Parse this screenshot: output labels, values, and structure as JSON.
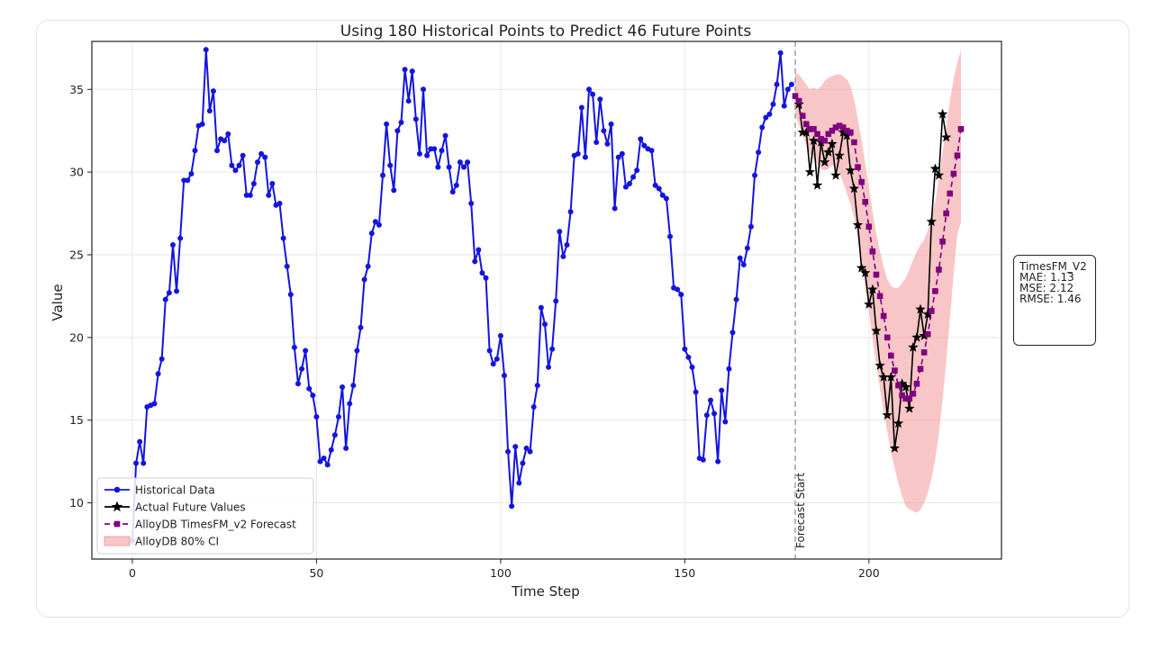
{
  "chart_data": {
    "type": "line",
    "title": "Using 180 Historical Points to Predict 46 Future Points",
    "xlabel": "Time Step",
    "ylabel": "Value",
    "xlim": [
      -11,
      236
    ],
    "ylim": [
      6.6,
      37.9
    ],
    "x_ticks": [
      0,
      50,
      100,
      150,
      200
    ],
    "y_ticks": [
      10,
      15,
      20,
      25,
      30,
      35
    ],
    "grid": true,
    "legend_position": "lower-left",
    "forecast_start": 180,
    "forecast_start_label": "Forecast Start",
    "series": [
      {
        "name": "Historical Data",
        "color": "#1414e0",
        "marker": "circle",
        "x_start": 0,
        "values": [
          7.7,
          12.4,
          13.7,
          12.4,
          15.8,
          15.9,
          16.0,
          17.8,
          18.7,
          22.3,
          22.7,
          25.6,
          22.8,
          26.0,
          29.5,
          29.5,
          29.9,
          31.3,
          32.8,
          32.9,
          37.4,
          33.7,
          34.9,
          31.3,
          32.0,
          31.9,
          32.3,
          30.4,
          30.1,
          30.4,
          31.0,
          28.6,
          28.6,
          29.3,
          30.6,
          31.1,
          30.9,
          28.6,
          29.3,
          28.0,
          28.1,
          26.0,
          24.3,
          22.6,
          19.4,
          17.2,
          18.1,
          19.2,
          16.9,
          16.5,
          15.2,
          12.5,
          12.7,
          12.3,
          13.2,
          14.1,
          15.2,
          17.0,
          13.3,
          16.0,
          17.1,
          19.2,
          20.6,
          23.5,
          24.3,
          26.3,
          27.0,
          26.8,
          29.8,
          32.9,
          30.4,
          28.9,
          32.5,
          33.0,
          36.2,
          34.3,
          36.1,
          33.2,
          31.1,
          35.0,
          31.0,
          31.4,
          31.4,
          30.3,
          31.3,
          32.2,
          30.3,
          28.8,
          29.2,
          30.6,
          30.3,
          30.6,
          28.1,
          24.6,
          25.3,
          23.9,
          23.6,
          19.2,
          18.4,
          18.7,
          20.1,
          17.7,
          13.1,
          9.8,
          13.4,
          11.2,
          12.4,
          13.3,
          13.1,
          15.8,
          17.1,
          21.8,
          20.8,
          18.2,
          19.3,
          22.2,
          26.4,
          24.9,
          25.6,
          27.6,
          31.0,
          31.1,
          33.9,
          30.9,
          35.0,
          34.7,
          31.8,
          34.4,
          32.5,
          31.7,
          32.9,
          27.8,
          30.9,
          31.1,
          29.1,
          29.3,
          29.7,
          30.1,
          32.0,
          31.6,
          31.4,
          31.3,
          29.2,
          29.0,
          28.6,
          28.4,
          26.1,
          23.0,
          22.9,
          22.6,
          19.3,
          18.8,
          18.2,
          16.7,
          12.7,
          12.6,
          15.3,
          16.2,
          15.4,
          12.5,
          16.8,
          14.9,
          18.1,
          20.3,
          22.3,
          24.8,
          24.4,
          25.4,
          26.7,
          29.8,
          31.2,
          32.7,
          33.3,
          33.5,
          34.1,
          35.3,
          37.2,
          34.0,
          35.0,
          35.3
        ]
      },
      {
        "name": "Actual Future Values",
        "color": "#000000",
        "marker": "star",
        "x_start": 181,
        "values": [
          34.1,
          32.4,
          32.4,
          30.0,
          31.9,
          29.2,
          31.8,
          30.6,
          31.2,
          31.7,
          29.8,
          31.0,
          32.4,
          32.2,
          30.1,
          29.0,
          26.8,
          24.2,
          23.9,
          22.0,
          22.9,
          20.4,
          18.3,
          17.6,
          15.3,
          17.6,
          13.3,
          14.8,
          17.2,
          17.0,
          15.7,
          19.4,
          20.0,
          21.7,
          20.1,
          21.4,
          27.0,
          30.2,
          29.8,
          33.5,
          32.1
        ]
      },
      {
        "name": "AlloyDB TimesFM_v2 Forecast",
        "color": "#800080",
        "marker": "square",
        "x_start": 180,
        "values": [
          34.6,
          34.3,
          33.4,
          32.9,
          32.6,
          32.6,
          32.3,
          32.0,
          31.9,
          32.3,
          32.5,
          32.7,
          32.8,
          32.7,
          32.5,
          32.4,
          31.8,
          30.3,
          29.4,
          28.2,
          26.7,
          25.2,
          23.8,
          22.5,
          21.3,
          20.0,
          18.9,
          18.0,
          17.1,
          16.5,
          16.3,
          16.3,
          16.6,
          17.2,
          18.1,
          19.1,
          20.2,
          21.6,
          22.8,
          24.1,
          25.8,
          27.5,
          28.7,
          29.9,
          31.0,
          32.6
        ]
      }
    ],
    "confidence_band": {
      "name": "AlloyDB 80% CI",
      "color": "#f4a0a0",
      "x_start": 180,
      "lower": [
        33.5,
        32.8,
        32.3,
        31.6,
        31.1,
        30.8,
        30.5,
        30.2,
        30.1,
        30.2,
        30.4,
        30.3,
        29.9,
        29.4,
        28.7,
        28.1,
        27.2,
        25.9,
        24.6,
        23.1,
        21.6,
        19.9,
        18.3,
        16.9,
        15.5,
        14.3,
        13.1,
        12.1,
        11.2,
        10.4,
        9.8,
        9.6,
        9.5,
        9.4,
        9.6,
        10.0,
        10.6,
        11.5,
        12.6,
        14.2,
        16.2,
        18.6,
        21.2,
        23.8,
        26.2,
        27.0
      ],
      "upper": [
        36.0,
        35.9,
        35.6,
        35.3,
        35.0,
        35.1,
        35.0,
        35.2,
        35.5,
        35.7,
        35.8,
        35.9,
        35.9,
        35.8,
        35.6,
        35.2,
        34.4,
        33.2,
        32.0,
        30.5,
        29.0,
        27.6,
        26.3,
        25.2,
        24.3,
        23.5,
        23.1,
        23.0,
        23.0,
        23.3,
        23.6,
        24.1,
        24.7,
        25.2,
        25.6,
        25.9,
        26.5,
        27.3,
        28.2,
        29.6,
        31.2,
        32.8,
        34.3,
        35.6,
        36.6,
        37.4
      ]
    }
  },
  "metrics_box": {
    "model": "TimesFM_V2",
    "mae": "MAE: 1.13",
    "mse": "MSE: 2.12",
    "rmse": "RMSE: 1.46"
  }
}
